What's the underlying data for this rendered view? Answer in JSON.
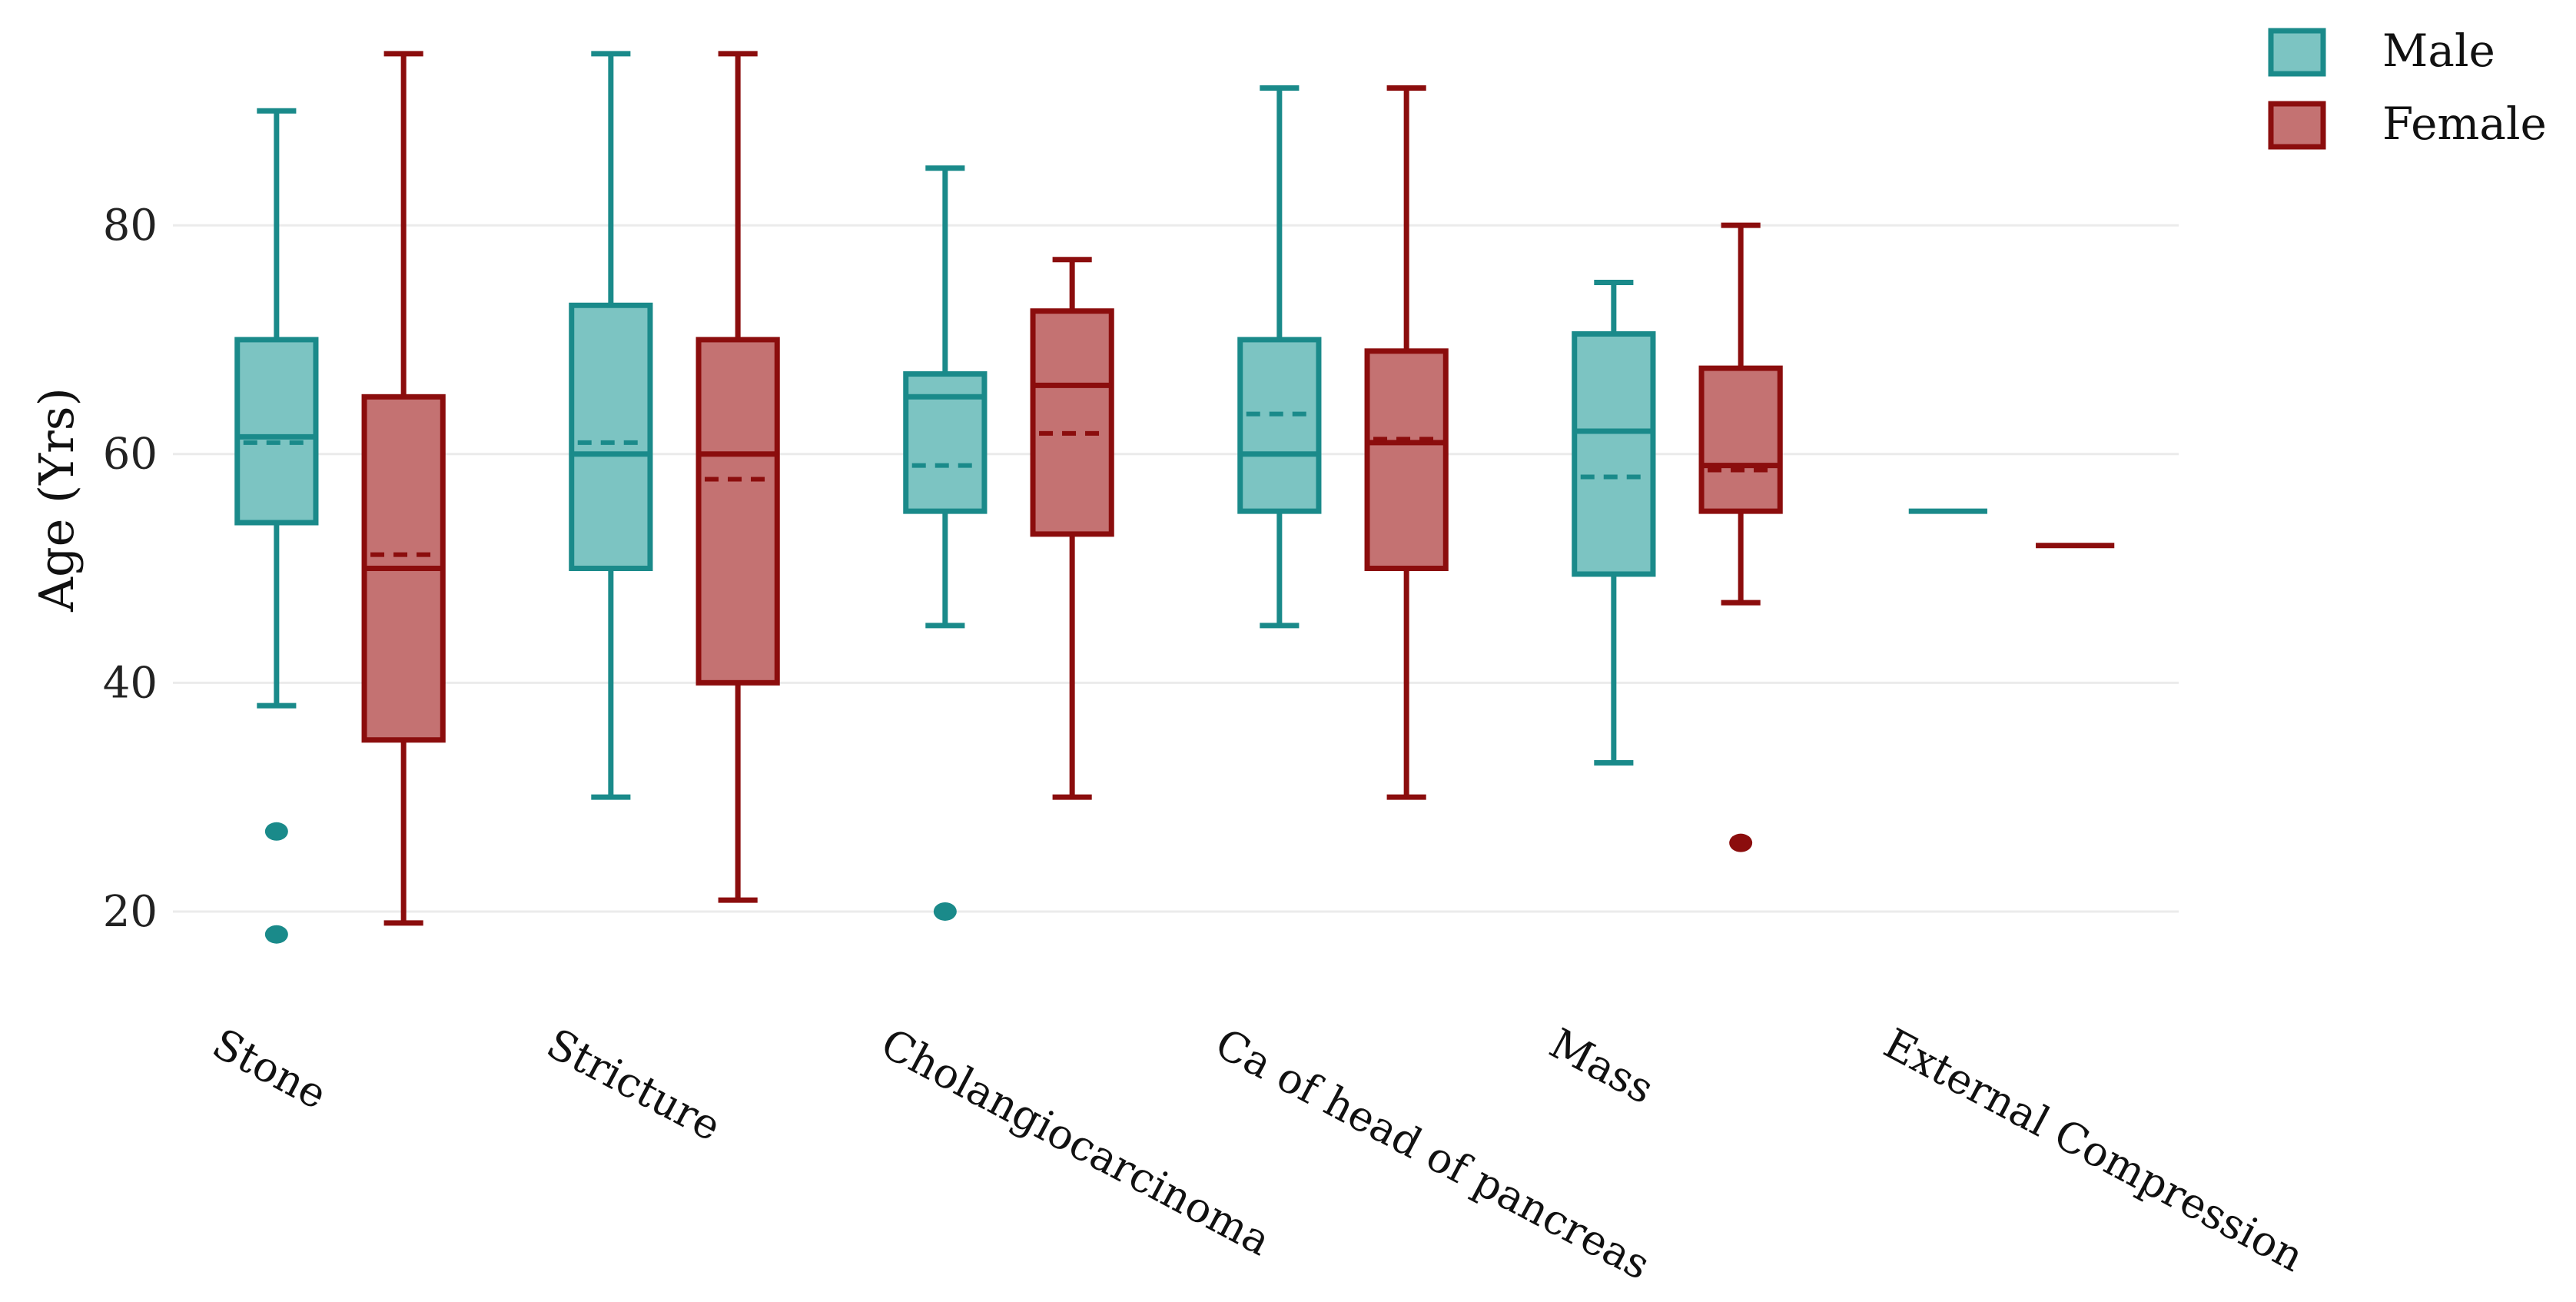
{
  "chart_data": {
    "type": "boxplot",
    "title": "",
    "xlabel": "",
    "ylabel": "Age (Yrs)",
    "ylim": [
      12,
      96
    ],
    "yticks": [
      20,
      40,
      60,
      80
    ],
    "grid": true,
    "legend_position": "top-right",
    "categories": [
      "Stone",
      "Stricture",
      "Cholangiocarcinoma",
      "Ca of head of pancreas",
      "Mass",
      "External Compression"
    ],
    "series": [
      {
        "name": "Male",
        "color": "#1a8a8a",
        "fill": "#7cc4c2",
        "boxes": [
          {
            "min": 38,
            "q1": 54,
            "median": 61.5,
            "mean": 61,
            "q3": 70,
            "max": 90,
            "outliers": [
              27,
              18
            ]
          },
          {
            "min": 30,
            "q1": 50,
            "median": 60,
            "mean": 61,
            "q3": 73,
            "max": 95,
            "outliers": []
          },
          {
            "min": 45,
            "q1": 55,
            "median": 65,
            "mean": 59,
            "q3": 67,
            "max": 85,
            "outliers": [
              20
            ]
          },
          {
            "min": 45,
            "q1": 55,
            "median": 60,
            "mean": 63.5,
            "q3": 70,
            "max": 92,
            "outliers": []
          },
          {
            "min": 33,
            "q1": 49.5,
            "median": 62,
            "mean": 58,
            "q3": 70.5,
            "max": 75,
            "outliers": []
          },
          {
            "min": 55,
            "q1": 55,
            "median": 55,
            "mean": 55,
            "q3": 55,
            "max": 55,
            "outliers": []
          }
        ]
      },
      {
        "name": "Female",
        "color": "#8b0d0d",
        "fill": "#c47272",
        "boxes": [
          {
            "min": 19,
            "q1": 35,
            "median": 50,
            "mean": 51.2,
            "q3": 65,
            "max": 95,
            "outliers": []
          },
          {
            "min": 21,
            "q1": 40,
            "median": 60,
            "mean": 57.8,
            "q3": 70,
            "max": 95,
            "outliers": []
          },
          {
            "min": 30,
            "q1": 53,
            "median": 66,
            "mean": 61.8,
            "q3": 72.5,
            "max": 77,
            "outliers": []
          },
          {
            "min": 30,
            "q1": 50,
            "median": 61,
            "mean": 61.3,
            "q3": 69,
            "max": 92,
            "outliers": []
          },
          {
            "min": 47,
            "q1": 55,
            "median": 59,
            "mean": 58.6,
            "q3": 67.5,
            "max": 80,
            "outliers": [
              26
            ]
          },
          {
            "min": 52,
            "q1": 52,
            "median": 52,
            "mean": 52,
            "q3": 52,
            "max": 52,
            "outliers": []
          }
        ]
      }
    ]
  }
}
